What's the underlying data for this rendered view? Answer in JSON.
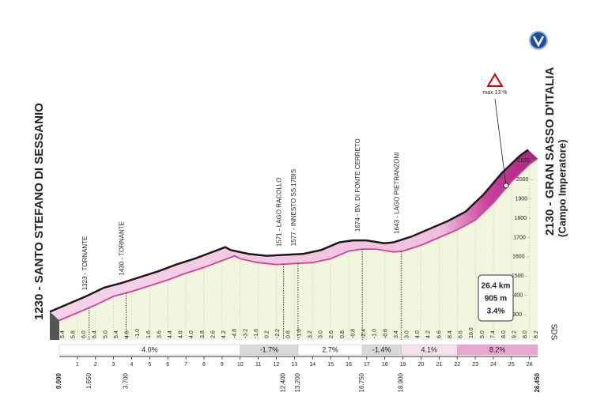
{
  "chart_data": {
    "type": "area",
    "start_title": "1230 - SANTO STEFANO DI SESSANIO",
    "finish_title": "2130 - GRAN SASSO D'ITALIA",
    "finish_subtitle": "(Campo Imperatore)",
    "x": [
      0,
      1,
      2,
      3,
      4,
      5,
      6,
      7,
      8,
      9,
      9.7,
      10,
      11,
      12,
      13,
      14,
      15,
      16,
      16.75,
      17.5,
      18.5,
      19,
      20,
      21,
      22,
      23,
      24,
      25,
      26,
      26.45
    ],
    "values": [
      1270,
      1310,
      1350,
      1395,
      1420,
      1450,
      1480,
      1515,
      1545,
      1580,
      1605,
      1590,
      1570,
      1560,
      1565,
      1570,
      1590,
      1630,
      1640,
      1640,
      1625,
      1630,
      1660,
      1700,
      1740,
      1790,
      1880,
      1990,
      2080,
      2110
    ],
    "color": "#d63fa0",
    "xlim": [
      0,
      26.45
    ],
    "ylim": [
      1210,
      2190
    ],
    "xticks": [
      1,
      2,
      3,
      4,
      5,
      6,
      7,
      8,
      9,
      10,
      11,
      12,
      13,
      14,
      15,
      16,
      17,
      18,
      19,
      20,
      21,
      22,
      23,
      24,
      25,
      26
    ],
    "yticks": [
      1300,
      1400,
      1500,
      1600,
      1700,
      1800,
      1900,
      2000,
      2100
    ],
    "grid": true,
    "waypoints": [
      {
        "km": 1.65,
        "label": "1323 - TORNANTE",
        "distance": "1.650"
      },
      {
        "km": 3.7,
        "label": "1430 - TORNANTE",
        "distance": "3.700"
      },
      {
        "km": 12.4,
        "label": "1571 - LAGO RACOLLO",
        "distance": "12.400"
      },
      {
        "km": 13.2,
        "label": "1577 - INNESTO SS.17BIS",
        "distance": "13.200"
      },
      {
        "km": 16.75,
        "label": "1674 - BV. DI FONTE CERRETO",
        "distance": "16.750"
      },
      {
        "km": 18.9,
        "label": "1643 - LAGO PIETRANZONI",
        "distance": "18.900"
      }
    ],
    "start_distance": "0.000",
    "finish_distance": "26.450",
    "segments": [
      {
        "start": 0,
        "end": 10,
        "gradient": 4.0,
        "label": "4.0%",
        "color": "#ffffff"
      },
      {
        "start": 10,
        "end": 13.2,
        "gradient": -1.7,
        "label": "-1.7%",
        "color": "#d9d9d9"
      },
      {
        "start": 13.2,
        "end": 16.75,
        "gradient": 2.7,
        "label": "2.7%",
        "color": "#ffffff"
      },
      {
        "start": 16.75,
        "end": 18.9,
        "gradient": -1.4,
        "label": "-1.4%",
        "color": "#d9d9d9"
      },
      {
        "start": 18.9,
        "end": 22,
        "gradient": 4.1,
        "label": "4.1%",
        "color": "#f8e1ef"
      },
      {
        "start": 22,
        "end": 26.45,
        "gradient": 8.2,
        "label": "8.2%",
        "color": "#e9a6cf"
      }
    ],
    "gradient_labels": [
      "5.4",
      "5.8",
      "6.0",
      "6.4",
      "5.0",
      "5.4",
      "4.6",
      "-1.0",
      "1.6",
      "3.6",
      "4.4",
      "4.6",
      "4.0",
      "3.8",
      "2.6",
      "4.2",
      "-4.8",
      "-3.2",
      "-1.6",
      "0.2",
      "-2.2",
      "0.8",
      "-1.0",
      "3.2",
      "3.0",
      "2.6",
      "0.8",
      "-0.8",
      "-2.4",
      "-1.0",
      "-0.6",
      "3.4",
      "3.0",
      "4.0",
      "4.2",
      "6.6",
      "8.4",
      "6.6",
      "10.0",
      "5.0",
      "7.4",
      "8.0",
      "9.2",
      "8.0",
      "8.2"
    ],
    "max_gradient": {
      "km": 24.7,
      "label": "max 13 %"
    },
    "summary": [
      "26.4 km",
      "905 m",
      "3.4%"
    ],
    "logo": "SDS"
  }
}
